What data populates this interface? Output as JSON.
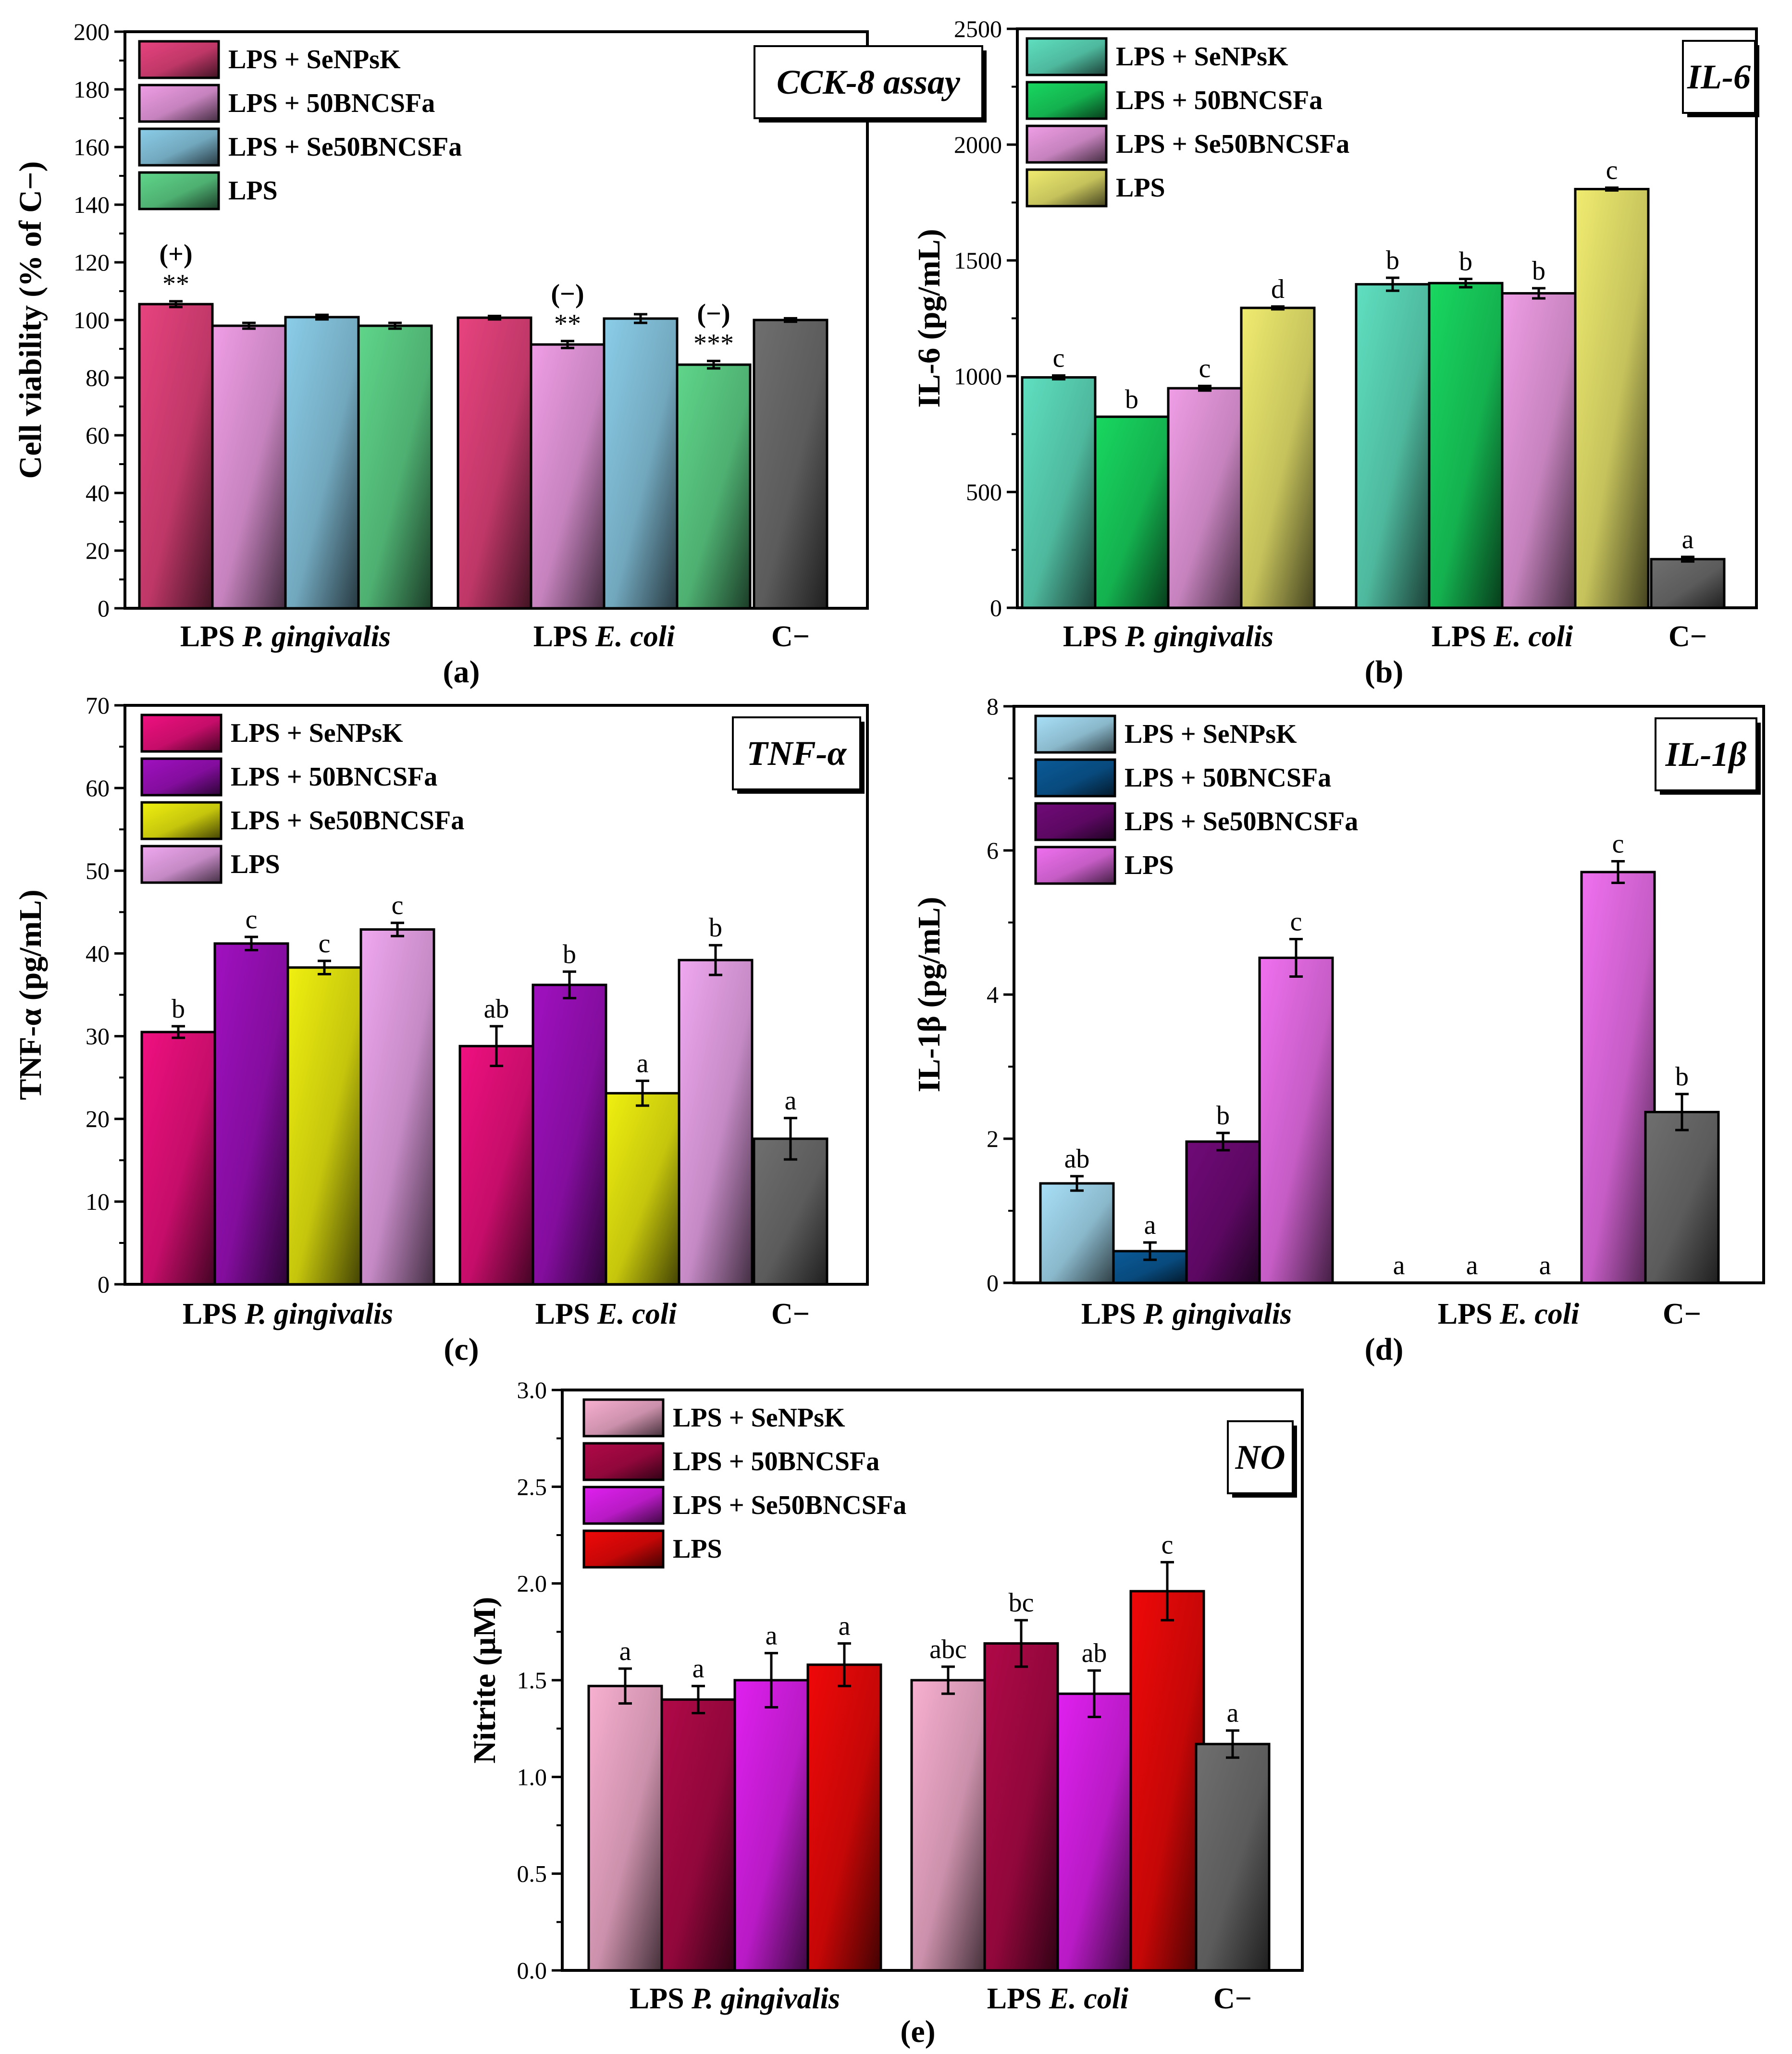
{
  "chart_data": [
    {
      "type": "bar",
      "panel": "(a)",
      "title": "CCK-8 assay",
      "ylabel": "Cell viability (% of C−)",
      "ylim": [
        0,
        200
      ],
      "yticks": [
        0,
        20,
        40,
        60,
        80,
        100,
        120,
        140,
        160,
        180,
        200
      ],
      "groups": [
        {
          "label_plain": "LPS ",
          "label_italic": "P. gingivalis",
          "bars": [
            {
              "series": 0,
              "value": 105.5,
              "err": 1.0,
              "label": "**",
              "sign": "(+)",
              "label_color": "#000000"
            },
            {
              "series": 1,
              "value": 98.0,
              "err": 1.0,
              "label": "",
              "sign": ""
            },
            {
              "series": 2,
              "value": 101.0,
              "err": 0.8,
              "label": "",
              "sign": ""
            },
            {
              "series": 3,
              "value": 98.0,
              "err": 1.0,
              "label": "",
              "sign": ""
            }
          ]
        },
        {
          "label_plain": "LPS ",
          "label_italic": "E. coli",
          "bars": [
            {
              "series": 0,
              "value": 100.8,
              "err": 0.6,
              "label": "",
              "sign": ""
            },
            {
              "series": 1,
              "value": 91.5,
              "err": 1.2,
              "label": "**",
              "sign": "(−)",
              "label_color": "#e01010"
            },
            {
              "series": 2,
              "value": 100.5,
              "err": 1.5,
              "label": "",
              "sign": ""
            },
            {
              "series": 3,
              "value": 84.5,
              "err": 1.3,
              "label": "***",
              "sign": "(−)",
              "label_color": "#e01010"
            }
          ]
        },
        {
          "label_plain": "C−",
          "label_italic": "",
          "bars": [
            {
              "series": 4,
              "value": 100.0,
              "err": 0.6,
              "label": "",
              "sign": ""
            }
          ]
        }
      ],
      "series": [
        {
          "name": "LPS + SeNPsK",
          "color": "#e8437e"
        },
        {
          "name": "LPS + 50BNCSFa",
          "color": "#f09ee6"
        },
        {
          "name": "LPS + Se50BNCSFa",
          "color": "#8bcde8"
        },
        {
          "name": "LPS",
          "color": "#5fd68a"
        },
        {
          "name": "C−",
          "color": "#6f6f6f"
        }
      ]
    },
    {
      "type": "bar",
      "panel": "(b)",
      "title": "IL-6",
      "ylabel": "IL-6 (pg/mL)",
      "ylim": [
        0,
        2500
      ],
      "yticks": [
        0,
        500,
        1000,
        1500,
        2000,
        2500
      ],
      "groups": [
        {
          "label_plain": "LPS ",
          "label_italic": "P. gingivalis",
          "bars": [
            {
              "series": 0,
              "value": 995,
              "err": 8,
              "label": "c"
            },
            {
              "series": 1,
              "value": 825,
              "err": 0,
              "label": "b"
            },
            {
              "series": 2,
              "value": 948,
              "err": 10,
              "label": "c"
            },
            {
              "series": 3,
              "value": 1295,
              "err": 6,
              "label": "d"
            }
          ]
        },
        {
          "label_plain": "LPS ",
          "label_italic": "E. coli",
          "bars": [
            {
              "series": 0,
              "value": 1397,
              "err": 28,
              "label": "b"
            },
            {
              "series": 1,
              "value": 1402,
              "err": 18,
              "label": "b"
            },
            {
              "series": 2,
              "value": 1358,
              "err": 22,
              "label": "b"
            },
            {
              "series": 3,
              "value": 1808,
              "err": 6,
              "label": "c"
            }
          ]
        },
        {
          "label_plain": "C−",
          "label_italic": "",
          "bars": [
            {
              "series": 4,
              "value": 210,
              "err": 10,
              "label": "a"
            }
          ]
        }
      ],
      "series": [
        {
          "name": "LPS + SeNPsK",
          "color": "#5fe0c0"
        },
        {
          "name": "LPS + 50BNCSFa",
          "color": "#18d860"
        },
        {
          "name": "LPS + Se50BNCSFa",
          "color": "#f09ee6"
        },
        {
          "name": "LPS",
          "color": "#f0ec70"
        },
        {
          "name": "C−",
          "color": "#6f6f6f"
        }
      ]
    },
    {
      "type": "bar",
      "panel": "(c)",
      "title": "TNF-α",
      "ylabel": "TNF-α (pg/mL)",
      "ylim": [
        0,
        70
      ],
      "yticks": [
        0,
        10,
        20,
        30,
        40,
        50,
        60,
        70
      ],
      "groups": [
        {
          "label_plain": "LPS ",
          "label_italic": "P. gingivalis",
          "bars": [
            {
              "series": 0,
              "value": 30.5,
              "err": 0.7,
              "label": "b"
            },
            {
              "series": 1,
              "value": 41.2,
              "err": 0.8,
              "label": "c"
            },
            {
              "series": 2,
              "value": 38.3,
              "err": 0.8,
              "label": "c"
            },
            {
              "series": 3,
              "value": 42.9,
              "err": 0.8,
              "label": "c"
            }
          ]
        },
        {
          "label_plain": "LPS ",
          "label_italic": "E. coli",
          "bars": [
            {
              "series": 0,
              "value": 28.8,
              "err": 2.4,
              "label": "ab"
            },
            {
              "series": 1,
              "value": 36.2,
              "err": 1.6,
              "label": "b"
            },
            {
              "series": 2,
              "value": 23.1,
              "err": 1.5,
              "label": "a"
            },
            {
              "series": 3,
              "value": 39.2,
              "err": 1.8,
              "label": "b"
            }
          ]
        },
        {
          "label_plain": "C−",
          "label_italic": "",
          "bars": [
            {
              "series": 4,
              "value": 17.6,
              "err": 2.5,
              "label": "a"
            }
          ]
        }
      ],
      "series": [
        {
          "name": "LPS + SeNPsK",
          "color": "#f01080"
        },
        {
          "name": "LPS + 50BNCSFa",
          "color": "#a010c0"
        },
        {
          "name": "LPS + Se50BNCSFa",
          "color": "#f0f010"
        },
        {
          "name": "LPS",
          "color": "#f0a8f0"
        },
        {
          "name": "C−",
          "color": "#6f6f6f"
        }
      ]
    },
    {
      "type": "bar",
      "panel": "(d)",
      "title": "IL-1β",
      "ylabel": "IL-1β (pg/mL)",
      "ylim": [
        0,
        8
      ],
      "yticks": [
        0,
        2,
        4,
        6,
        8
      ],
      "groups": [
        {
          "label_plain": "LPS ",
          "label_italic": "P. gingivalis",
          "bars": [
            {
              "series": 0,
              "value": 1.38,
              "err": 0.1,
              "label": "ab"
            },
            {
              "series": 1,
              "value": 0.44,
              "err": 0.12,
              "label": "a"
            },
            {
              "series": 2,
              "value": 1.96,
              "err": 0.12,
              "label": "b"
            },
            {
              "series": 3,
              "value": 4.51,
              "err": 0.26,
              "label": "c"
            }
          ]
        },
        {
          "label_plain": "LPS ",
          "label_italic": "E. coli",
          "bars": [
            {
              "series": 0,
              "value": 0,
              "err": 0,
              "label": "a"
            },
            {
              "series": 1,
              "value": 0,
              "err": 0,
              "label": "a"
            },
            {
              "series": 2,
              "value": 0,
              "err": 0,
              "label": "a"
            },
            {
              "series": 3,
              "value": 5.7,
              "err": 0.15,
              "label": "c"
            }
          ]
        },
        {
          "label_plain": "C−",
          "label_italic": "",
          "bars": [
            {
              "series": 4,
              "value": 2.37,
              "err": 0.25,
              "label": "b"
            }
          ]
        }
      ],
      "series": [
        {
          "name": "LPS + SeNPsK",
          "color": "#a8e0f8"
        },
        {
          "name": "LPS + 50BNCSFa",
          "color": "#0a5a98"
        },
        {
          "name": "LPS + Se50BNCSFa",
          "color": "#700a78"
        },
        {
          "name": "LPS",
          "color": "#f070f0"
        },
        {
          "name": "C−",
          "color": "#6f6f6f"
        }
      ]
    },
    {
      "type": "bar",
      "panel": "(e)",
      "title": "NO",
      "ylabel": "Nitrite (μM)",
      "ylim": [
        0,
        3.0
      ],
      "yticks": [
        0,
        0.5,
        1.0,
        1.5,
        2.0,
        2.5,
        3.0
      ],
      "tick_decimals": 1,
      "groups": [
        {
          "label_plain": "LPS ",
          "label_italic": "P. gingivalis",
          "bars": [
            {
              "series": 0,
              "value": 1.47,
              "err": 0.09,
              "label": "a"
            },
            {
              "series": 1,
              "value": 1.4,
              "err": 0.07,
              "label": "a"
            },
            {
              "series": 2,
              "value": 1.5,
              "err": 0.14,
              "label": "a"
            },
            {
              "series": 3,
              "value": 1.58,
              "err": 0.11,
              "label": "a"
            }
          ]
        },
        {
          "label_plain": "LPS ",
          "label_italic": "E. coli",
          "bars": [
            {
              "series": 0,
              "value": 1.5,
              "err": 0.07,
              "label": "abc"
            },
            {
              "series": 1,
              "value": 1.69,
              "err": 0.12,
              "label": "bc"
            },
            {
              "series": 2,
              "value": 1.43,
              "err": 0.12,
              "label": "ab"
            },
            {
              "series": 3,
              "value": 1.96,
              "err": 0.15,
              "label": "c"
            }
          ]
        },
        {
          "label_plain": "C−",
          "label_italic": "",
          "bars": [
            {
              "series": 4,
              "value": 1.17,
              "err": 0.07,
              "label": "a"
            }
          ]
        }
      ],
      "series": [
        {
          "name": "LPS + SeNPsK",
          "color": "#f8b0d0"
        },
        {
          "name": "LPS + 50BNCSFa",
          "color": "#b00848"
        },
        {
          "name": "LPS + Se50BNCSFa",
          "color": "#e020f0"
        },
        {
          "name": "LPS",
          "color": "#f00808"
        },
        {
          "name": "C−",
          "color": "#6f6f6f"
        }
      ]
    }
  ]
}
